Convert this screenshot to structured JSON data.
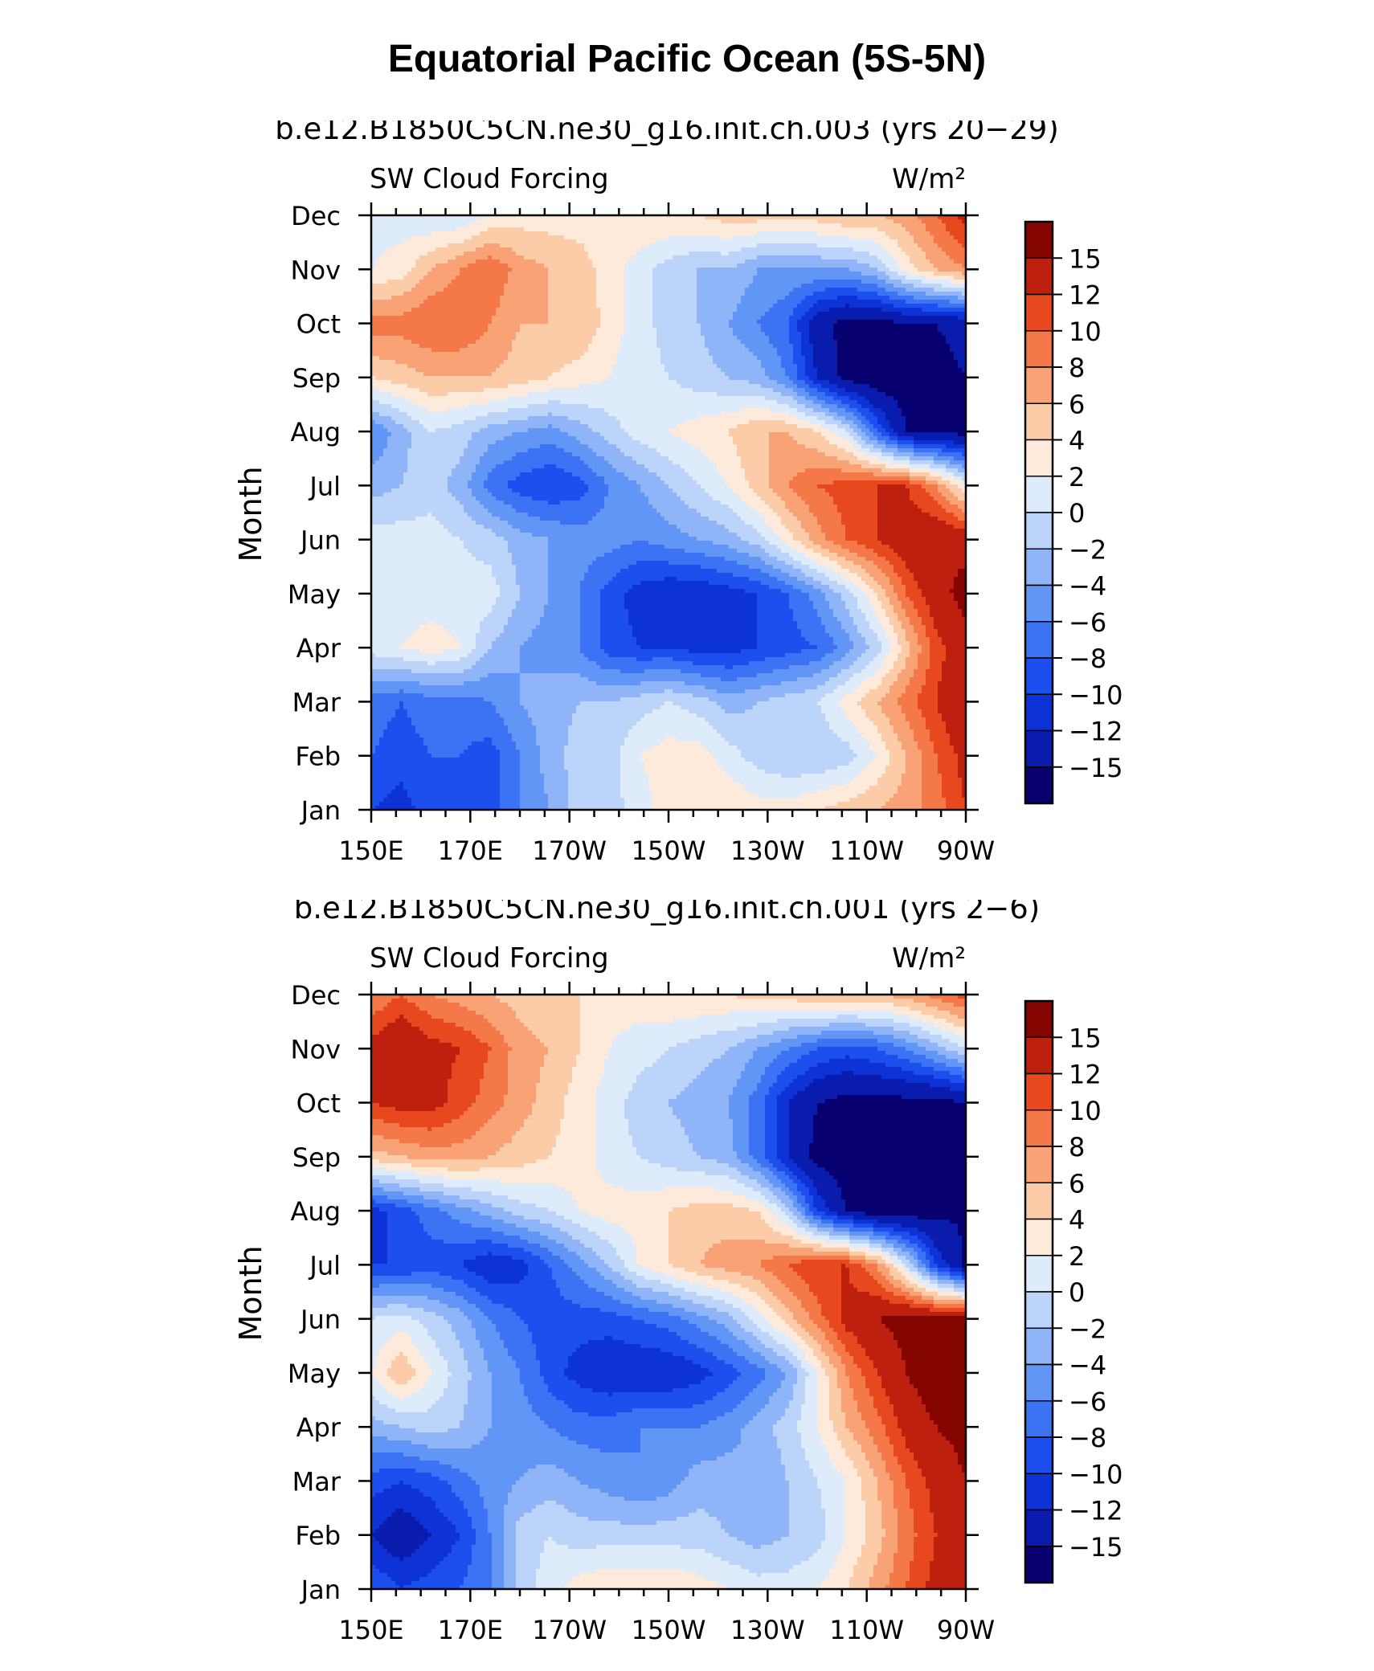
{
  "title": "Equatorial Pacific Ocean (5S-5N)",
  "chart_data": [
    {
      "type": "heatmap",
      "case": "b.e12.B1850C5CN.ne30_g16.init.ch.003 (yrs 20−29)",
      "left_label": "SW Cloud Forcing",
      "units": "W/m²",
      "ylabel": "Month",
      "xlabel": "",
      "x_ticks": [
        "150E",
        "170E",
        "170W",
        "150W",
        "130W",
        "110W",
        "90W"
      ],
      "x_lon": [
        150,
        170,
        190,
        210,
        230,
        250,
        270
      ],
      "xlim": [
        150,
        270
      ],
      "y_ticks": [
        "Jan",
        "Feb",
        "Mar",
        "Apr",
        "May",
        "Jun",
        "Jul",
        "Aug",
        "Sep",
        "Oct",
        "Nov",
        "Dec"
      ],
      "levels": [
        -15,
        -12,
        -10,
        -8,
        -6,
        -4,
        -2,
        0,
        2,
        4,
        6,
        8,
        10,
        12,
        15
      ],
      "colorbar_labels": [
        "15",
        "12",
        "10",
        "8",
        "6",
        "4",
        "2",
        "0",
        "−2",
        "−4",
        "−6",
        "−8",
        "−10",
        "−12",
        "−15"
      ],
      "colors": [
        "#08006e",
        "#0a1cae",
        "#0d33d6",
        "#1c4fee",
        "#3c73f4",
        "#6196f6",
        "#8fb4f8",
        "#bcd3fa",
        "#deebfb",
        "#fdeadb",
        "#fccba8",
        "#f9a276",
        "#f57848",
        "#e8481e",
        "#bd200e",
        "#840400"
      ],
      "x": [
        150,
        156,
        162,
        168,
        174,
        180,
        186,
        192,
        198,
        204,
        210,
        216,
        222,
        228,
        234,
        240,
        246,
        252,
        258,
        264,
        270
      ],
      "y": [
        1,
        2,
        3,
        4,
        5,
        6,
        7,
        8,
        9,
        10,
        11,
        12
      ],
      "z": [
        [
          -10,
          -11,
          -9,
          -8,
          -9,
          -6,
          -4,
          -1,
          -1,
          1,
          3,
          4,
          4,
          3,
          3,
          4,
          5,
          6,
          7,
          9,
          12
        ],
        [
          -8,
          -9,
          -8,
          -8,
          -9,
          -6,
          -3,
          -1,
          -1,
          2,
          3,
          3,
          1,
          -1,
          -2,
          -2,
          -1,
          2,
          6,
          10,
          13
        ],
        [
          -7,
          -8,
          -7,
          -7,
          -6,
          -4,
          -3,
          -2,
          -2,
          -1,
          0,
          -1,
          -3,
          -2,
          -1,
          0,
          3,
          6,
          9,
          12,
          15
        ],
        [
          1,
          2,
          3,
          2,
          -2,
          -4,
          -5,
          -6,
          -9,
          -10,
          -10,
          -11,
          -11,
          -10,
          -9,
          -8,
          -5,
          -1,
          5,
          11,
          14
        ],
        [
          2,
          1,
          1,
          1,
          1,
          -2,
          -4,
          -6,
          -9,
          -11,
          -12,
          -12,
          -11,
          -10,
          -8,
          -5,
          -1,
          4,
          10,
          14,
          16
        ],
        [
          1,
          1,
          1,
          0,
          -1,
          -3,
          -4,
          -5,
          -5,
          -6,
          -5,
          -4,
          -3,
          -1,
          3,
          7,
          10,
          12,
          14,
          15,
          14
        ],
        [
          -3,
          -2,
          -1,
          -3,
          -7,
          -9,
          -10,
          -9,
          -6,
          -4,
          -2,
          0,
          2,
          5,
          8,
          10,
          11,
          12,
          12,
          8,
          2
        ],
        [
          -6,
          -3,
          0,
          -1,
          -3,
          -4,
          -5,
          -3,
          -1,
          1,
          2,
          3,
          4,
          6,
          6,
          4,
          0,
          -8,
          -15,
          -16,
          -16
        ],
        [
          4,
          5,
          6,
          6,
          6,
          5,
          4,
          3,
          2,
          1,
          0,
          -1,
          -2,
          -3,
          -6,
          -12,
          -16,
          -17,
          -17,
          -16,
          -15
        ],
        [
          9,
          9,
          10,
          10,
          8,
          6,
          6,
          6,
          3,
          1,
          -1,
          -2,
          -4,
          -6,
          -8,
          -14,
          -16,
          -16,
          -15,
          -15,
          -14
        ],
        [
          2,
          3,
          6,
          8,
          10,
          7,
          6,
          5,
          3,
          1,
          -1,
          -2,
          -2,
          -4,
          -4,
          -4,
          -4,
          -2,
          3,
          6,
          8
        ],
        [
          1,
          1,
          0,
          0,
          2,
          3,
          3,
          3,
          3,
          4,
          4,
          4,
          5,
          5,
          5,
          5,
          6,
          6,
          7,
          10,
          13
        ]
      ]
    },
    {
      "type": "heatmap",
      "case": "b.e12.B1850C5CN.ne30_g16.init.ch.001 (yrs 2−6)",
      "left_label": "SW Cloud Forcing",
      "units": "W/m²",
      "ylabel": "Month",
      "xlabel": "",
      "x_ticks": [
        "150E",
        "170E",
        "170W",
        "150W",
        "130W",
        "110W",
        "90W"
      ],
      "x_lon": [
        150,
        170,
        190,
        210,
        230,
        250,
        270
      ],
      "xlim": [
        150,
        270
      ],
      "y_ticks": [
        "Jan",
        "Feb",
        "Mar",
        "Apr",
        "May",
        "Jun",
        "Jul",
        "Aug",
        "Sep",
        "Oct",
        "Nov",
        "Dec"
      ],
      "levels": [
        -15,
        -12,
        -10,
        -8,
        -6,
        -4,
        -2,
        0,
        2,
        4,
        6,
        8,
        10,
        12,
        15
      ],
      "colorbar_labels": [
        "15",
        "12",
        "10",
        "8",
        "6",
        "4",
        "2",
        "0",
        "−2",
        "−4",
        "−6",
        "−8",
        "−10",
        "−12",
        "−15"
      ],
      "colors": [
        "#08006e",
        "#0a1cae",
        "#0d33d6",
        "#1c4fee",
        "#3c73f4",
        "#6196f6",
        "#8fb4f8",
        "#bcd3fa",
        "#deebfb",
        "#fdeadb",
        "#fccba8",
        "#f9a276",
        "#f57848",
        "#e8481e",
        "#bd200e",
        "#840400"
      ],
      "x": [
        150,
        156,
        162,
        168,
        174,
        180,
        186,
        192,
        198,
        204,
        210,
        216,
        222,
        228,
        234,
        240,
        246,
        252,
        258,
        264,
        270
      ],
      "y": [
        1,
        2,
        3,
        4,
        5,
        6,
        7,
        8,
        9,
        10,
        11,
        12
      ],
      "z": [
        [
          -8,
          -10,
          -9,
          -8,
          -6,
          -1,
          1,
          3,
          4,
          4,
          4,
          3,
          2,
          1,
          1,
          2,
          4,
          7,
          10,
          13,
          15
        ],
        [
          -12,
          -14,
          -12,
          -10,
          -6,
          -1,
          0,
          -1,
          -1,
          -1,
          -1,
          -1,
          -2,
          -3,
          -2,
          -1,
          2,
          5,
          9,
          12,
          14
        ],
        [
          -9,
          -10,
          -9,
          -7,
          -5,
          -4,
          -3,
          -4,
          -5,
          -6,
          -5,
          -3,
          -3,
          -4,
          -2,
          0,
          2,
          6,
          10,
          13,
          15
        ],
        [
          -3,
          -2,
          -1,
          -2,
          -4,
          -5,
          -6,
          -7,
          -7,
          -6,
          -6,
          -6,
          -5,
          -3,
          -1,
          2,
          6,
          9,
          13,
          15,
          16
        ],
        [
          2,
          6,
          2,
          -1,
          -4,
          -6,
          -9,
          -11,
          -12,
          -12,
          -12,
          -11,
          -9,
          -7,
          -4,
          2,
          8,
          12,
          15,
          17,
          18
        ],
        [
          0,
          1,
          -1,
          -3,
          -6,
          -8,
          -9,
          -9,
          -9,
          -8,
          -7,
          -5,
          -3,
          1,
          5,
          9,
          13,
          15,
          16,
          16,
          16
        ],
        [
          -10,
          -10,
          -9,
          -10,
          -12,
          -11,
          -8,
          -5,
          -2,
          2,
          4,
          6,
          7,
          8,
          10,
          12,
          12,
          8,
          0,
          -10,
          -16
        ],
        [
          -11,
          -9,
          -7,
          -5,
          -3,
          -1,
          0,
          2,
          3,
          3,
          4,
          5,
          5,
          4,
          -1,
          -10,
          -15,
          -17,
          -17,
          -16,
          -15
        ],
        [
          5,
          6,
          7,
          7,
          6,
          5,
          4,
          3,
          1,
          0,
          -1,
          -2,
          -3,
          -7,
          -12,
          -16,
          -17,
          -17,
          -16,
          -16,
          -15
        ],
        [
          12,
          13,
          13,
          11,
          9,
          7,
          5,
          3,
          1,
          -1,
          -2,
          -3,
          -4,
          -7,
          -12,
          -15,
          -16,
          -16,
          -16,
          -16,
          -15
        ],
        [
          13,
          15,
          13,
          12,
          10,
          7,
          6,
          4,
          2,
          1,
          0,
          -1,
          -2,
          -4,
          -6,
          -8,
          -9,
          -8,
          -6,
          -3,
          0
        ],
        [
          8,
          10,
          8,
          7,
          6,
          5,
          4,
          4,
          3,
          3,
          4,
          4,
          4,
          5,
          5,
          6,
          6,
          6,
          7,
          9,
          11
        ]
      ]
    }
  ]
}
